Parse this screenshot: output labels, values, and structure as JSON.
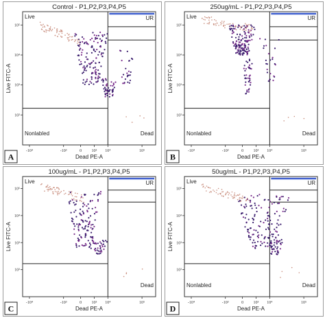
{
  "chart_data": [
    {
      "type": "scatter",
      "letter": "A",
      "title": "Control - P1,P2,P3,P4,P5",
      "xlabel": "Dead PE-A",
      "ylabel": "Live FITC-A",
      "quadrants": {
        "ul": "Live",
        "ur": "UR",
        "ll": "Nonlabled",
        "lr": "Dead"
      },
      "x_ticks": [
        "-10⁴",
        "-10³",
        "0",
        "10³",
        "10⁴",
        "10⁵"
      ],
      "y_ticks": [
        "10⁵",
        "10⁴",
        "10³",
        "10²"
      ],
      "gate_x": "10⁴",
      "gate_y": "10²",
      "clusters": [
        {
          "x": [
            3.0,
            4.0
          ],
          "y": [
            3.4,
            5.0
          ],
          "n": 140,
          "tone": "dark"
        },
        {
          "x": [
            3.8,
            4.25
          ],
          "y": [
            3.0,
            3.6
          ],
          "n": 45,
          "tone": "dark"
        },
        {
          "x": [
            4.3,
            4.8
          ],
          "y": [
            3.4,
            4.5
          ],
          "n": 25,
          "tone": "dark"
        },
        {
          "x": [
            2.0,
            3.2
          ],
          "y": [
            4.5,
            5.3
          ],
          "n": 70,
          "tone": "light"
        }
      ]
    },
    {
      "type": "scatter",
      "letter": "B",
      "title": "250ug/mL - P1,P2,P3,P4,P5",
      "xlabel": "Dead PE-A",
      "ylabel": "Live FITC-A",
      "quadrants": {
        "ul": "Live",
        "ur": "UR",
        "ll": "Nonlabled",
        "lr": "Dead"
      },
      "x_ticks": [
        "-10⁴",
        "-10³",
        "0",
        "10³",
        "10⁴",
        "10⁵"
      ],
      "y_ticks": [
        "10⁵",
        "10⁴",
        "10³",
        "10²"
      ],
      "gate_x": "10⁴",
      "gate_y": "10²",
      "clusters": [
        {
          "x": [
            2.8,
            3.6
          ],
          "y": [
            4.3,
            5.2
          ],
          "n": 150,
          "tone": "dark"
        },
        {
          "x": [
            3.2,
            3.5
          ],
          "y": [
            3.1,
            4.2
          ],
          "n": 40,
          "tone": "dark"
        },
        {
          "x": [
            3.7,
            4.3
          ],
          "y": [
            3.4,
            4.8
          ],
          "n": 25,
          "tone": "dark"
        },
        {
          "x": [
            2.0,
            3.5
          ],
          "y": [
            5.0,
            5.5
          ],
          "n": 70,
          "tone": "light"
        }
      ]
    },
    {
      "type": "scatter",
      "letter": "C",
      "title": "100ug/mL - P1,P2,P3,P4,P5",
      "xlabel": "Dead PE-A",
      "ylabel": "Live FITC-A",
      "quadrants": {
        "ul": "Live",
        "ur": "UR",
        "ll": "",
        "lr": "Dead"
      },
      "x_ticks": [
        "-10⁴",
        "-10³",
        "0",
        "10³",
        "10⁴",
        "10⁵"
      ],
      "y_ticks": [
        "10⁵",
        "10⁴",
        "10³",
        "10²"
      ],
      "gate_x": "10⁴",
      "gate_y": "10²",
      "clusters": [
        {
          "x": [
            2.8,
            3.8
          ],
          "y": [
            3.2,
            5.1
          ],
          "n": 130,
          "tone": "dark"
        },
        {
          "x": [
            3.5,
            4.0
          ],
          "y": [
            3.0,
            3.5
          ],
          "n": 35,
          "tone": "dark"
        },
        {
          "x": [
            2.0,
            3.3
          ],
          "y": [
            4.7,
            5.4
          ],
          "n": 65,
          "tone": "light"
        }
      ]
    },
    {
      "type": "scatter",
      "letter": "D",
      "title": "50ug/mL - P1,P2,P3,P4,P5",
      "xlabel": "Dead PE-A",
      "ylabel": "Live FITC-A",
      "quadrants": {
        "ul": "Live",
        "ur": "UR",
        "ll": "Nonlabled",
        "lr": "Dead"
      },
      "x_ticks": [
        "-10⁴",
        "-10³",
        "0",
        "10³",
        "10⁴",
        "10⁵"
      ],
      "y_ticks": [
        "10⁵",
        "10⁴",
        "10³",
        "10²"
      ],
      "gate_x": "10⁴",
      "gate_y": "10²",
      "clusters": [
        {
          "x": [
            3.0,
            4.6
          ],
          "y": [
            3.2,
            5.0
          ],
          "n": 150,
          "tone": "dark"
        },
        {
          "x": [
            3.9,
            4.4
          ],
          "y": [
            3.0,
            3.5
          ],
          "n": 40,
          "tone": "dark"
        },
        {
          "x": [
            2.0,
            3.4
          ],
          "y": [
            4.6,
            5.4
          ],
          "n": 65,
          "tone": "light"
        }
      ]
    }
  ],
  "colors": {
    "dark": "#3b1e6e",
    "medium": "#7a2d8c",
    "light": "#c98e7e",
    "gate_bar": "#3f5fcf"
  }
}
